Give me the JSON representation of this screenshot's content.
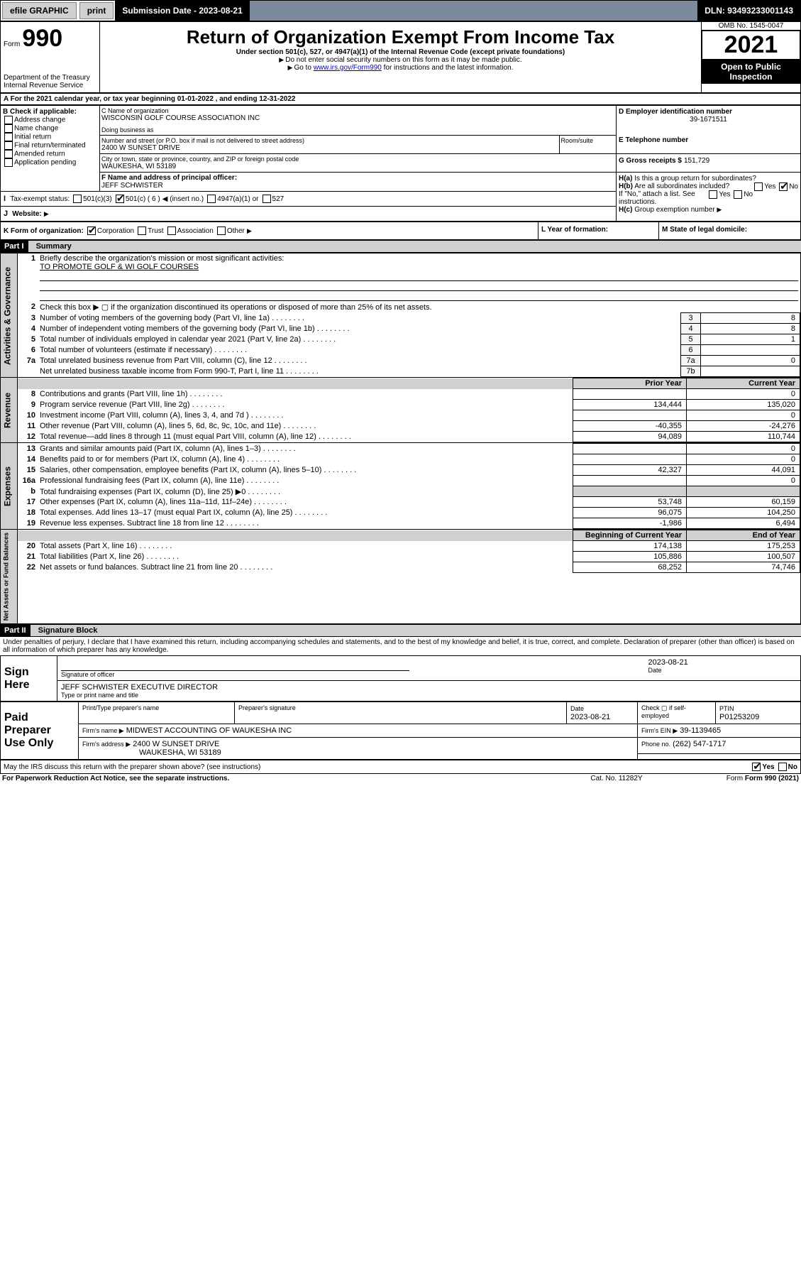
{
  "topbar": {
    "efile": "efile GRAPHIC",
    "print": "print",
    "subdate_label": "Submission Date - 2023-08-21",
    "dln": "DLN: 93493233001143"
  },
  "header": {
    "form_label": "Form",
    "form_no": "990",
    "title": "Return of Organization Exempt From Income Tax",
    "subtitle": "Under section 501(c), 527, or 4947(a)(1) of the Internal Revenue Code (except private foundations)",
    "note1": "Do not enter social security numbers on this form as it may be made public.",
    "note2_pre": "Go to ",
    "note2_link": "www.irs.gov/Form990",
    "note2_post": " for instructions and the latest information.",
    "dept": "Department of the Treasury",
    "irs": "Internal Revenue Service",
    "omb": "OMB No. 1545-0047",
    "year": "2021",
    "open": "Open to Public Inspection"
  },
  "A": {
    "label": "A For the 2021 calendar year, or tax year beginning ",
    "begin": "01-01-2022",
    "mid": " , and ending ",
    "end": "12-31-2022"
  },
  "B": {
    "label": "B Check if applicable:",
    "items": [
      "Address change",
      "Name change",
      "Initial return",
      "Final return/terminated",
      "Amended return",
      "Application pending"
    ]
  },
  "C": {
    "name_label": "C Name of organization",
    "name": "WISCONSIN GOLF COURSE ASSOCIATION INC",
    "dba_label": "Doing business as",
    "street_label": "Number and street (or P.O. box if mail is not delivered to street address)",
    "room_label": "Room/suite",
    "street": "2400 W SUNSET DRIVE",
    "city_label": "City or town, state or province, country, and ZIP or foreign postal code",
    "city": "WAUKESHA, WI  53189"
  },
  "D": {
    "label": "D Employer identification number",
    "value": "39-1671511"
  },
  "E": {
    "label": "E Telephone number",
    "value": ""
  },
  "G": {
    "label": "G Gross receipts $",
    "value": "151,729"
  },
  "F": {
    "label": "F Name and address of principal officer:",
    "value": "JEFF SCHWISTER"
  },
  "H": {
    "a": "Is this a group return for subordinates?",
    "b": "Are all subordinates included?",
    "ifno": "If \"No,\" attach a list. See instructions.",
    "c": "Group exemption number"
  },
  "I": {
    "label": "Tax-exempt status:",
    "opts": {
      "c3": "501(c)(3)",
      "c": "501(c) ( 6 )",
      "insert": "(insert no.)",
      "a1": "4947(a)(1) or",
      "s527": "527"
    }
  },
  "J": {
    "label": "Website:"
  },
  "K": {
    "label": "K Form of organization:",
    "opts": [
      "Corporation",
      "Trust",
      "Association",
      "Other"
    ]
  },
  "L": {
    "label": "L Year of formation:"
  },
  "M": {
    "label": "M State of legal domicile:"
  },
  "part1": {
    "title": "Part I",
    "heading": "Summary",
    "l1_label": "Briefly describe the organization's mission or most significant activities:",
    "l1_text": "TO PROMOTE GOLF & WI GOLF COURSES",
    "l2": "Check this box ▶ ▢ if the organization discontinued its operations or disposed of more than 25% of its net assets.",
    "rows_gov": [
      {
        "n": "3",
        "t": "Number of voting members of the governing body (Part VI, line 1a)",
        "box": "3",
        "v": "8"
      },
      {
        "n": "4",
        "t": "Number of independent voting members of the governing body (Part VI, line 1b)",
        "box": "4",
        "v": "8"
      },
      {
        "n": "5",
        "t": "Total number of individuals employed in calendar year 2021 (Part V, line 2a)",
        "box": "5",
        "v": "1"
      },
      {
        "n": "6",
        "t": "Total number of volunteers (estimate if necessary)",
        "box": "6",
        "v": ""
      },
      {
        "n": "7a",
        "t": "Total unrelated business revenue from Part VIII, column (C), line 12",
        "box": "7a",
        "v": "0"
      },
      {
        "n": "",
        "t": "Net unrelated business taxable income from Form 990-T, Part I, line 11",
        "box": "7b",
        "v": ""
      }
    ],
    "col_prior": "Prior Year",
    "col_curr": "Current Year",
    "rows_rev": [
      {
        "n": "8",
        "t": "Contributions and grants (Part VIII, line 1h)",
        "p": "",
        "c": "0"
      },
      {
        "n": "9",
        "t": "Program service revenue (Part VIII, line 2g)",
        "p": "134,444",
        "c": "135,020"
      },
      {
        "n": "10",
        "t": "Investment income (Part VIII, column (A), lines 3, 4, and 7d )",
        "p": "",
        "c": "0"
      },
      {
        "n": "11",
        "t": "Other revenue (Part VIII, column (A), lines 5, 6d, 8c, 9c, 10c, and 11e)",
        "p": "-40,355",
        "c": "-24,276"
      },
      {
        "n": "12",
        "t": "Total revenue—add lines 8 through 11 (must equal Part VIII, column (A), line 12)",
        "p": "94,089",
        "c": "110,744"
      }
    ],
    "rows_exp": [
      {
        "n": "13",
        "t": "Grants and similar amounts paid (Part IX, column (A), lines 1–3)",
        "p": "",
        "c": "0"
      },
      {
        "n": "14",
        "t": "Benefits paid to or for members (Part IX, column (A), line 4)",
        "p": "",
        "c": "0"
      },
      {
        "n": "15",
        "t": "Salaries, other compensation, employee benefits (Part IX, column (A), lines 5–10)",
        "p": "42,327",
        "c": "44,091"
      },
      {
        "n": "16a",
        "t": "Professional fundraising fees (Part IX, column (A), line 11e)",
        "p": "",
        "c": "0"
      },
      {
        "n": "b",
        "t": "Total fundraising expenses (Part IX, column (D), line 25) ▶0",
        "p": "—shade—",
        "c": "—shade—"
      },
      {
        "n": "17",
        "t": "Other expenses (Part IX, column (A), lines 11a–11d, 11f–24e)",
        "p": "53,748",
        "c": "60,159"
      },
      {
        "n": "18",
        "t": "Total expenses. Add lines 13–17 (must equal Part IX, column (A), line 25)",
        "p": "96,075",
        "c": "104,250"
      },
      {
        "n": "19",
        "t": "Revenue less expenses. Subtract line 18 from line 12",
        "p": "-1,986",
        "c": "6,494"
      }
    ],
    "col_begin": "Beginning of Current Year",
    "col_end": "End of Year",
    "rows_net": [
      {
        "n": "20",
        "t": "Total assets (Part X, line 16)",
        "p": "174,138",
        "c": "175,253"
      },
      {
        "n": "21",
        "t": "Total liabilities (Part X, line 26)",
        "p": "105,886",
        "c": "100,507"
      },
      {
        "n": "22",
        "t": "Net assets or fund balances. Subtract line 21 from line 20",
        "p": "68,252",
        "c": "74,746"
      }
    ],
    "side_gov": "Activities & Governance",
    "side_rev": "Revenue",
    "side_exp": "Expenses",
    "side_net": "Net Assets or Fund Balances"
  },
  "part2": {
    "title": "Part II",
    "heading": "Signature Block",
    "decl": "Under penalties of perjury, I declare that I have examined this return, including accompanying schedules and statements, and to the best of my knowledge and belief, it is true, correct, and complete. Declaration of preparer (other than officer) is based on all information of which preparer has any knowledge."
  },
  "sign": {
    "here": "Sign Here",
    "sig_label": "Signature of officer",
    "date_label": "Date",
    "date": "2023-08-21",
    "name": "JEFF SCHWISTER  EXECUTIVE DIRECTOR",
    "name_label": "Type or print name and title"
  },
  "paid": {
    "here": "Paid Preparer Use Only",
    "cols": {
      "name": "Print/Type preparer's name",
      "sig": "Preparer's signature",
      "date": "Date",
      "check": "Check ▢ if self-employed",
      "ptin": "PTIN"
    },
    "date": "2023-08-21",
    "ptin": "P01253209",
    "firm_name_label": "Firm's name ▶",
    "firm_name": "MIDWEST ACCOUNTING OF WAUKESHA INC",
    "firm_ein_label": "Firm's EIN ▶",
    "firm_ein": "39-1139465",
    "firm_addr_label": "Firm's address ▶",
    "firm_addr1": "2400 W SUNSET DRIVE",
    "firm_addr2": "WAUKESHA, WI  53189",
    "phone_label": "Phone no.",
    "phone": "(262) 547-1717"
  },
  "footer": {
    "discuss": "May the IRS discuss this return with the preparer shown above? (see instructions)",
    "yes": "Yes",
    "no": "No",
    "pra": "For Paperwork Reduction Act Notice, see the separate instructions.",
    "cat": "Cat. No. 11282Y",
    "form": "Form 990 (2021)"
  }
}
